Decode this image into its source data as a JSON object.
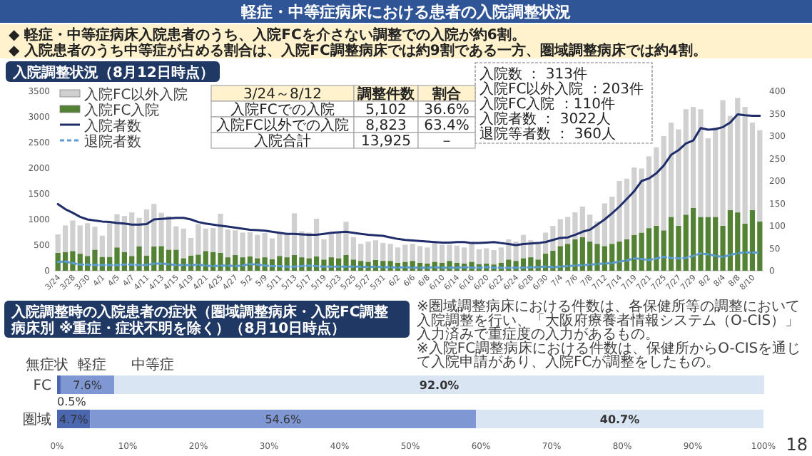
{
  "chart_data": [
    {
      "type": "other",
      "title": "軽症・中等症病床における患者の入院調整状況",
      "annotations": [
        "◆ 軽症・中等症病床入院患者のうち、入院FCを介さない調整での入院が約6割。",
        "◆ 入院患者のうち中等症が占める割合は、入院FC調整病床では約9割である一方、圏域調整病床では約4割。",
        "18"
      ]
    },
    {
      "type": "bar",
      "stacked": true,
      "title": "入院調整状況（8月12日時点）",
      "legend": "top left",
      "categories": [
        "3/24",
        null,
        "3/28",
        null,
        "3/30",
        null,
        "4/1",
        null,
        "4/5",
        null,
        "4/7",
        null,
        "4/11",
        null,
        "4/13",
        null,
        "4/15",
        null,
        "4/19",
        null,
        "4/21",
        null,
        "4/25",
        null,
        "4/27",
        null,
        "5/2",
        null,
        "5/9",
        null,
        "5/11",
        null,
        "5/13",
        null,
        "5/17",
        null,
        "5/19",
        null,
        "5/23",
        null,
        "5/25",
        null,
        "5/27",
        null,
        "5/31",
        null,
        "6/2",
        null,
        "6/6",
        null,
        "6/8",
        null,
        "6/10",
        null,
        "6/14",
        null,
        "6/16",
        null,
        "6/20",
        null,
        "6/22",
        null,
        "6/24",
        null,
        "6/28",
        null,
        "6/30",
        null,
        "7/4",
        null,
        "7/6",
        null,
        "7/8",
        null,
        "7/12",
        null,
        "7/14",
        null,
        "7/19",
        null,
        "7/21",
        null,
        "7/25",
        null,
        "7/27",
        null,
        "7/29",
        null,
        "8/2",
        null,
        "8/4",
        null,
        "8/8",
        null,
        "8/10",
        null
      ],
      "ylim": [
        0,
        3500
      ],
      "yticks": [
        0,
        500,
        1000,
        1500,
        2000,
        2500,
        3000,
        3500
      ],
      "y2lim": [
        0,
        400
      ],
      "y2ticks": [
        0,
        50,
        100,
        150,
        200,
        250,
        300,
        350,
        400
      ],
      "series": [
        {
          "name": "入院FC入院",
          "type": "bar",
          "axis": "y2",
          "color": "#548235",
          "values": [
            40,
            42,
            44,
            38,
            33,
            47,
            31,
            31,
            52,
            42,
            33,
            54,
            34,
            54,
            55,
            47,
            47,
            28,
            34,
            36,
            44,
            42,
            40,
            30,
            35,
            30,
            32,
            28,
            30,
            26,
            33,
            30,
            35,
            30,
            28,
            32,
            25,
            30,
            28,
            35,
            25,
            22,
            20,
            24,
            22,
            22,
            18,
            20,
            22,
            18,
            16,
            20,
            18,
            22,
            18,
            16,
            20,
            15,
            16,
            14,
            18,
            25,
            22,
            28,
            30,
            25,
            38,
            45,
            55,
            60,
            70,
            75,
            65,
            60,
            55,
            60,
            65,
            70,
            80,
            85,
            95,
            100,
            90,
            120,
            100,
            125,
            140,
            120,
            120,
            120,
            100,
            135,
            130,
            105,
            135,
            110
          ]
        },
        {
          "name": "入院FC以外入院",
          "type": "bar",
          "axis": "y2",
          "color": "#d0d0d0",
          "values": [
            41,
            59,
            68,
            63,
            73,
            51,
            47,
            75,
            74,
            80,
            97,
            64,
            103,
            95,
            74,
            75,
            52,
            66,
            39,
            68,
            50,
            53,
            87,
            62,
            55,
            55,
            54,
            52,
            54,
            46,
            52,
            52,
            93,
            58,
            57,
            84,
            45,
            52,
            57,
            74,
            50,
            38,
            45,
            44,
            40,
            38,
            34,
            38,
            38,
            37,
            36,
            42,
            40,
            36,
            38,
            36,
            44,
            33,
            34,
            32,
            34,
            45,
            43,
            52,
            38,
            38,
            47,
            55,
            60,
            60,
            60,
            68,
            60,
            50,
            95,
            105,
            135,
            135,
            150,
            143,
            160,
            175,
            210,
            210,
            215,
            235,
            225,
            240,
            175,
            200,
            280,
            210,
            255,
            260,
            195,
            203
          ]
        },
        {
          "name": "入院者数",
          "type": "line",
          "color": "#1f2d6b",
          "values": [
            1300,
            1200,
            1130,
            1050,
            1000,
            980,
            960,
            950,
            930,
            920,
            900,
            900,
            910,
            1000,
            1010,
            1020,
            1030,
            1030,
            1000,
            950,
            920,
            900,
            880,
            860,
            840,
            820,
            800,
            790,
            780,
            760,
            740,
            720,
            720,
            710,
            700,
            700,
            720,
            740,
            750,
            760,
            740,
            720,
            700,
            690,
            680,
            650,
            620,
            600,
            590,
            580,
            570,
            560,
            550,
            550,
            560,
            560,
            540,
            540,
            550,
            560,
            540,
            520,
            500,
            520,
            530,
            540,
            560,
            600,
            640,
            650,
            700,
            760,
            800,
            900,
            1000,
            1120,
            1250,
            1400,
            1550,
            1750,
            1800,
            1900,
            2050,
            2260,
            2350,
            2480,
            2540,
            2780,
            2750,
            2760,
            2800,
            2890,
            3050,
            3030,
            3020,
            3020
          ]
        },
        {
          "name": "退院者数",
          "type": "line",
          "line_style": "dashed",
          "color": "#5b9bd5",
          "values": [
            170,
            180,
            150,
            120,
            120,
            110,
            110,
            110,
            110,
            120,
            120,
            110,
            110,
            140,
            140,
            130,
            110,
            110,
            110,
            120,
            100,
            90,
            100,
            100,
            90,
            100,
            130,
            120,
            100,
            90,
            90,
            80,
            80,
            90,
            100,
            90,
            80,
            80,
            80,
            80,
            80,
            80,
            70,
            80,
            70,
            70,
            60,
            70,
            60,
            60,
            60,
            70,
            60,
            60,
            60,
            70,
            60,
            60,
            70,
            60,
            60,
            60,
            60,
            60,
            70,
            70,
            80,
            70,
            80,
            90,
            100,
            110,
            120,
            130,
            140,
            150,
            180,
            200,
            240,
            230,
            210,
            240,
            270,
            250,
            240,
            250,
            290,
            340,
            320,
            290,
            270,
            310,
            340,
            360,
            350,
            360
          ]
        }
      ],
      "annotations": [
        "入院数 ： 313件",
        "入院FC以外入院 ：203件",
        "入院FC入院 ：110件",
        "入院者数 ： 3022人",
        "退院等者数 ： 360人"
      ]
    },
    {
      "type": "other",
      "annotations": [
        "3/24～8/12",
        "調整件数",
        "割合",
        "入院FCでの入院",
        "5,102",
        "36.6%",
        "入院FC以外での入院",
        "8,823",
        "63.4%",
        "入院合計",
        "13,925",
        "－"
      ]
    },
    {
      "type": "bar",
      "orientation": "horizontal",
      "stacked": true,
      "title": "入院調整時の入院患者の症状（圏域調整病床・入院FC調整病床別 ※重症・症状不明を除く）（8月10日時点）",
      "categories": [
        "FC",
        "圏域"
      ],
      "xlim": [
        0,
        100
      ],
      "xticks": [
        {
          "value": 0,
          "label": "0%"
        },
        {
          "value": 10,
          "label": "10%"
        },
        {
          "value": 20,
          "label": "20%"
        },
        {
          "value": 30,
          "label": "30%"
        },
        {
          "value": 40,
          "label": "40%"
        },
        {
          "value": 50,
          "label": "50%"
        },
        {
          "value": 60,
          "label": "60%"
        },
        {
          "value": 70,
          "label": "70%"
        },
        {
          "value": 80,
          "label": "80%"
        },
        {
          "value": 90,
          "label": "90%"
        },
        {
          "value": 100,
          "label": "100%"
        }
      ],
      "series": [
        {
          "name": "無症状",
          "color": "#4a67b0",
          "values": [
            0.5,
            4.7
          ],
          "value_labels": [
            "0.5%",
            "4.7%"
          ]
        },
        {
          "name": "軽症",
          "color": "#7f97d3",
          "values": [
            7.6,
            54.6
          ],
          "value_labels": [
            "7.6%",
            "54.6%"
          ]
        },
        {
          "name": "中等症",
          "color": "#dae5f4",
          "values": [
            92.0,
            40.7
          ],
          "value_labels": [
            "92.0%",
            "40.7%"
          ]
        }
      ],
      "annotations": [
        "※圏域調整病床における件数は、各保健所等の調整において入院調整を行い、「大阪府療養者情報システム（O-CIS）」入力済みで重症度の入力があるもの。",
        "※入院FC調整病床における件数は、保健所からO-CISを通じて入院申請があり、入院FCが調整をしたもの。"
      ]
    }
  ]
}
